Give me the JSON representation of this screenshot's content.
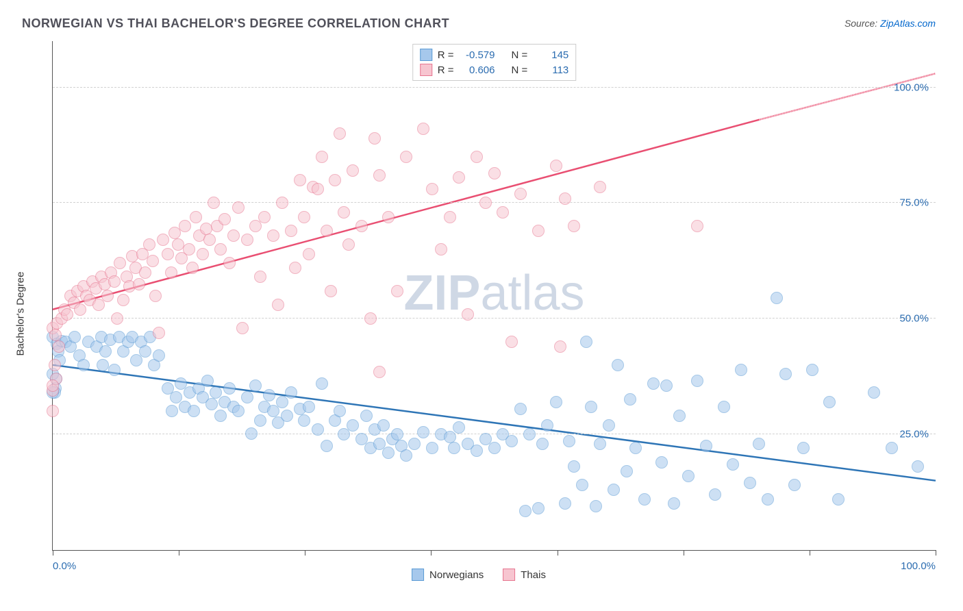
{
  "title": "NORWEGIAN VS THAI BACHELOR'S DEGREE CORRELATION CHART",
  "source_prefix": "Source: ",
  "source_name": "ZipAtlas.com",
  "ylabel": "Bachelor's Degree",
  "chart": {
    "type": "scatter",
    "xlim": [
      0,
      100
    ],
    "ylim": [
      0,
      110
    ],
    "y_ticks": [
      25,
      50,
      75,
      100
    ],
    "y_tick_labels": [
      "25.0%",
      "50.0%",
      "75.0%",
      "100.0%"
    ],
    "x_tick_labels": {
      "start": "0.0%",
      "end": "100.0%"
    },
    "x_tick_count": 8,
    "background_color": "#ffffff",
    "grid_color": "#d0d0d0",
    "axis_color": "#555555",
    "tick_label_color": "#2b6cb0",
    "axis_label_fontsize": 15,
    "title_fontsize": 18,
    "point_radius": 9,
    "point_opacity": 0.55,
    "watermark_text_a": "ZIP",
    "watermark_text_b": "atlas",
    "watermark_color": "#cfd8e5",
    "series": [
      {
        "key": "norwegians",
        "label": "Norwegians",
        "fill": "#a6c8ec",
        "stroke": "#5b9bd5",
        "trend_color": "#2e75b6",
        "trend": {
          "x1": 0,
          "y1": 40,
          "x2": 100,
          "y2": 15
        },
        "R_label": "R =",
        "R": "-0.579",
        "N_label": "N =",
        "N": "145",
        "points": [
          [
            0.0,
            46.0
          ],
          [
            0.5,
            44.5
          ],
          [
            0.6,
            43.0
          ],
          [
            0.8,
            41.0
          ],
          [
            1.0,
            45.2
          ],
          [
            0.4,
            37.0
          ],
          [
            0.3,
            35.0
          ],
          [
            0.2,
            34.0
          ],
          [
            0.0,
            34.0
          ],
          [
            0.0,
            38.0
          ],
          [
            1.5,
            45.0
          ],
          [
            2.0,
            44.0
          ],
          [
            2.5,
            46.0
          ],
          [
            3.0,
            42.0
          ],
          [
            3.5,
            40.0
          ],
          [
            4.0,
            45.0
          ],
          [
            5.0,
            44.0
          ],
          [
            5.5,
            46.0
          ],
          [
            5.7,
            40.0
          ],
          [
            6.0,
            43.0
          ],
          [
            6.5,
            45.5
          ],
          [
            7.0,
            39.0
          ],
          [
            7.5,
            46.0
          ],
          [
            8.0,
            43.0
          ],
          [
            8.5,
            45.0
          ],
          [
            9.0,
            46.0
          ],
          [
            9.5,
            41.0
          ],
          [
            10.0,
            45.0
          ],
          [
            10.5,
            43.0
          ],
          [
            11.0,
            46.0
          ],
          [
            11.5,
            40.0
          ],
          [
            12.0,
            42.0
          ],
          [
            13.0,
            35.0
          ],
          [
            13.5,
            30.0
          ],
          [
            14.0,
            33.0
          ],
          [
            14.5,
            36.0
          ],
          [
            15.0,
            31.0
          ],
          [
            15.5,
            34.0
          ],
          [
            16.0,
            30.0
          ],
          [
            16.5,
            35.0
          ],
          [
            17.0,
            33.0
          ],
          [
            17.5,
            36.5
          ],
          [
            18.0,
            31.5
          ],
          [
            18.5,
            34.0
          ],
          [
            19.0,
            29.0
          ],
          [
            19.5,
            32.0
          ],
          [
            20.0,
            35.0
          ],
          [
            20.5,
            31.0
          ],
          [
            21.0,
            30.0
          ],
          [
            22.0,
            33.0
          ],
          [
            22.5,
            25.2
          ],
          [
            23.0,
            35.5
          ],
          [
            23.5,
            28.0
          ],
          [
            24.0,
            31.0
          ],
          [
            24.5,
            33.5
          ],
          [
            25.0,
            30.0
          ],
          [
            25.5,
            27.5
          ],
          [
            26.0,
            32.0
          ],
          [
            26.5,
            29.0
          ],
          [
            27.0,
            34.0
          ],
          [
            28.0,
            30.5
          ],
          [
            28.5,
            28.0
          ],
          [
            29.0,
            31.0
          ],
          [
            30.0,
            26.0
          ],
          [
            30.5,
            36.0
          ],
          [
            31.0,
            22.5
          ],
          [
            32.0,
            28.0
          ],
          [
            32.5,
            30.0
          ],
          [
            33.0,
            25.0
          ],
          [
            34.0,
            27.0
          ],
          [
            35.0,
            24.0
          ],
          [
            35.5,
            29.0
          ],
          [
            36.0,
            22.0
          ],
          [
            36.5,
            26.0
          ],
          [
            37.0,
            23.0
          ],
          [
            37.5,
            27.0
          ],
          [
            38.0,
            21.0
          ],
          [
            38.5,
            24.0
          ],
          [
            39.0,
            25.0
          ],
          [
            39.5,
            22.5
          ],
          [
            40.0,
            20.5
          ],
          [
            41.0,
            23.0
          ],
          [
            42.0,
            25.5
          ],
          [
            43.0,
            22.0
          ],
          [
            44.0,
            25.0
          ],
          [
            45.0,
            24.5
          ],
          [
            45.5,
            22.0
          ],
          [
            46.0,
            26.5
          ],
          [
            47.0,
            23.0
          ],
          [
            48.0,
            21.5
          ],
          [
            49.0,
            24.0
          ],
          [
            50.0,
            22.0
          ],
          [
            51.0,
            25.0
          ],
          [
            52.0,
            23.5
          ],
          [
            53.0,
            30.5
          ],
          [
            53.5,
            8.5
          ],
          [
            54.0,
            25.0
          ],
          [
            55.0,
            9.0
          ],
          [
            55.5,
            23.0
          ],
          [
            56.0,
            27.0
          ],
          [
            57.0,
            32.0
          ],
          [
            58.0,
            10.0
          ],
          [
            58.5,
            23.5
          ],
          [
            59.0,
            18.0
          ],
          [
            60.0,
            14.0
          ],
          [
            60.4,
            45.0
          ],
          [
            61.0,
            31.0
          ],
          [
            61.5,
            9.5
          ],
          [
            62.0,
            23.0
          ],
          [
            63.0,
            27.0
          ],
          [
            63.5,
            13.0
          ],
          [
            64.0,
            40.0
          ],
          [
            65.0,
            17.0
          ],
          [
            65.4,
            32.5
          ],
          [
            66.0,
            22.0
          ],
          [
            67.0,
            11.0
          ],
          [
            68.0,
            36.0
          ],
          [
            69.0,
            19.0
          ],
          [
            69.5,
            35.5
          ],
          [
            70.4,
            10.0
          ],
          [
            71.0,
            29.0
          ],
          [
            72.0,
            16.0
          ],
          [
            73.0,
            36.5
          ],
          [
            74.0,
            22.5
          ],
          [
            75.0,
            12.0
          ],
          [
            76.0,
            31.0
          ],
          [
            77.0,
            18.5
          ],
          [
            78.0,
            39.0
          ],
          [
            79.0,
            14.5
          ],
          [
            80.0,
            23.0
          ],
          [
            81.0,
            11.0
          ],
          [
            82.0,
            54.5
          ],
          [
            83.0,
            38.0
          ],
          [
            84.0,
            14.0
          ],
          [
            85.0,
            22.0
          ],
          [
            86.0,
            39.0
          ],
          [
            88.0,
            32.0
          ],
          [
            89.0,
            11.0
          ],
          [
            93.0,
            34.0
          ],
          [
            95.0,
            22.0
          ],
          [
            98.0,
            18.0
          ]
        ]
      },
      {
        "key": "thais",
        "label": "Thais",
        "fill": "#f7c5d0",
        "stroke": "#e77690",
        "trend_color": "#e94f72",
        "trend": {
          "x1": 0,
          "y1": 52,
          "x2": 80,
          "y2": 93
        },
        "trend_dash_ext": {
          "x1": 80,
          "y1": 93,
          "x2": 100,
          "y2": 103
        },
        "R_label": "R =",
        "R": "0.606",
        "N_label": "N =",
        "N": "113",
        "points": [
          [
            0.0,
            48.0
          ],
          [
            0.3,
            46.5
          ],
          [
            0.5,
            49.0
          ],
          [
            0.7,
            44.0
          ],
          [
            0.2,
            40.0
          ],
          [
            0.4,
            37.0
          ],
          [
            0.0,
            34.5
          ],
          [
            0.0,
            30.0
          ],
          [
            0.0,
            35.5
          ],
          [
            1.0,
            50.0
          ],
          [
            1.3,
            52.0
          ],
          [
            1.6,
            51.0
          ],
          [
            2.0,
            55.0
          ],
          [
            2.4,
            53.5
          ],
          [
            2.8,
            56.0
          ],
          [
            3.1,
            52.0
          ],
          [
            3.5,
            57.0
          ],
          [
            3.8,
            55.0
          ],
          [
            4.2,
            54.0
          ],
          [
            4.5,
            58.0
          ],
          [
            4.9,
            56.5
          ],
          [
            5.2,
            53.0
          ],
          [
            5.5,
            59.0
          ],
          [
            5.9,
            57.5
          ],
          [
            6.2,
            55.0
          ],
          [
            6.6,
            60.0
          ],
          [
            7.0,
            58.0
          ],
          [
            7.3,
            50.0
          ],
          [
            7.6,
            62.0
          ],
          [
            8.0,
            54.0
          ],
          [
            8.4,
            59.0
          ],
          [
            8.7,
            57.0
          ],
          [
            9.0,
            63.5
          ],
          [
            9.4,
            61.0
          ],
          [
            9.8,
            57.5
          ],
          [
            10.2,
            64.0
          ],
          [
            10.5,
            60.0
          ],
          [
            10.9,
            66.0
          ],
          [
            11.3,
            62.5
          ],
          [
            11.6,
            55.0
          ],
          [
            12.0,
            47.0
          ],
          [
            12.5,
            67.0
          ],
          [
            13.0,
            64.0
          ],
          [
            13.4,
            60.0
          ],
          [
            13.8,
            68.5
          ],
          [
            14.2,
            66.0
          ],
          [
            14.6,
            63.0
          ],
          [
            15.0,
            70.0
          ],
          [
            15.4,
            65.0
          ],
          [
            15.8,
            61.0
          ],
          [
            16.2,
            72.0
          ],
          [
            16.6,
            68.0
          ],
          [
            17.0,
            64.0
          ],
          [
            17.4,
            69.5
          ],
          [
            17.8,
            67.0
          ],
          [
            18.2,
            75.0
          ],
          [
            18.6,
            70.0
          ],
          [
            19.0,
            65.0
          ],
          [
            19.5,
            71.5
          ],
          [
            20.0,
            62.0
          ],
          [
            20.5,
            68.0
          ],
          [
            21.0,
            74.0
          ],
          [
            21.5,
            48.0
          ],
          [
            22.0,
            67.0
          ],
          [
            23.0,
            70.0
          ],
          [
            23.5,
            59.0
          ],
          [
            24.0,
            72.0
          ],
          [
            25.0,
            68.0
          ],
          [
            25.5,
            53.0
          ],
          [
            26.0,
            75.0
          ],
          [
            27.0,
            69.0
          ],
          [
            27.5,
            61.0
          ],
          [
            28.0,
            80.0
          ],
          [
            28.5,
            72.0
          ],
          [
            29.0,
            64.0
          ],
          [
            29.5,
            78.5
          ],
          [
            30.0,
            78.0
          ],
          [
            30.5,
            85.0
          ],
          [
            31.0,
            69.0
          ],
          [
            31.5,
            56.0
          ],
          [
            32.0,
            80.0
          ],
          [
            32.5,
            90.0
          ],
          [
            33.0,
            73.0
          ],
          [
            33.5,
            66.0
          ],
          [
            34.0,
            82.0
          ],
          [
            35.0,
            70.0
          ],
          [
            36.0,
            50.0
          ],
          [
            36.5,
            89.0
          ],
          [
            37.0,
            81.0
          ],
          [
            37.0,
            38.5
          ],
          [
            38.0,
            72.0
          ],
          [
            39.0,
            56.0
          ],
          [
            40.0,
            85.0
          ],
          [
            42.0,
            91.0
          ],
          [
            43.0,
            78.0
          ],
          [
            44.0,
            65.0
          ],
          [
            45.0,
            72.0
          ],
          [
            46.0,
            80.5
          ],
          [
            47.0,
            51.0
          ],
          [
            48.0,
            85.0
          ],
          [
            49.0,
            75.0
          ],
          [
            50.0,
            81.5
          ],
          [
            51.0,
            73.0
          ],
          [
            52.0,
            45.0
          ],
          [
            53.0,
            77.0
          ],
          [
            55.0,
            69.0
          ],
          [
            57.0,
            83.0
          ],
          [
            57.5,
            44.0
          ],
          [
            58.0,
            76.0
          ],
          [
            59.0,
            70.0
          ],
          [
            62.0,
            78.5
          ],
          [
            73.0,
            70.0
          ]
        ]
      }
    ]
  },
  "legend_bottom": [
    {
      "series_key": "norwegians"
    },
    {
      "series_key": "thais"
    }
  ]
}
